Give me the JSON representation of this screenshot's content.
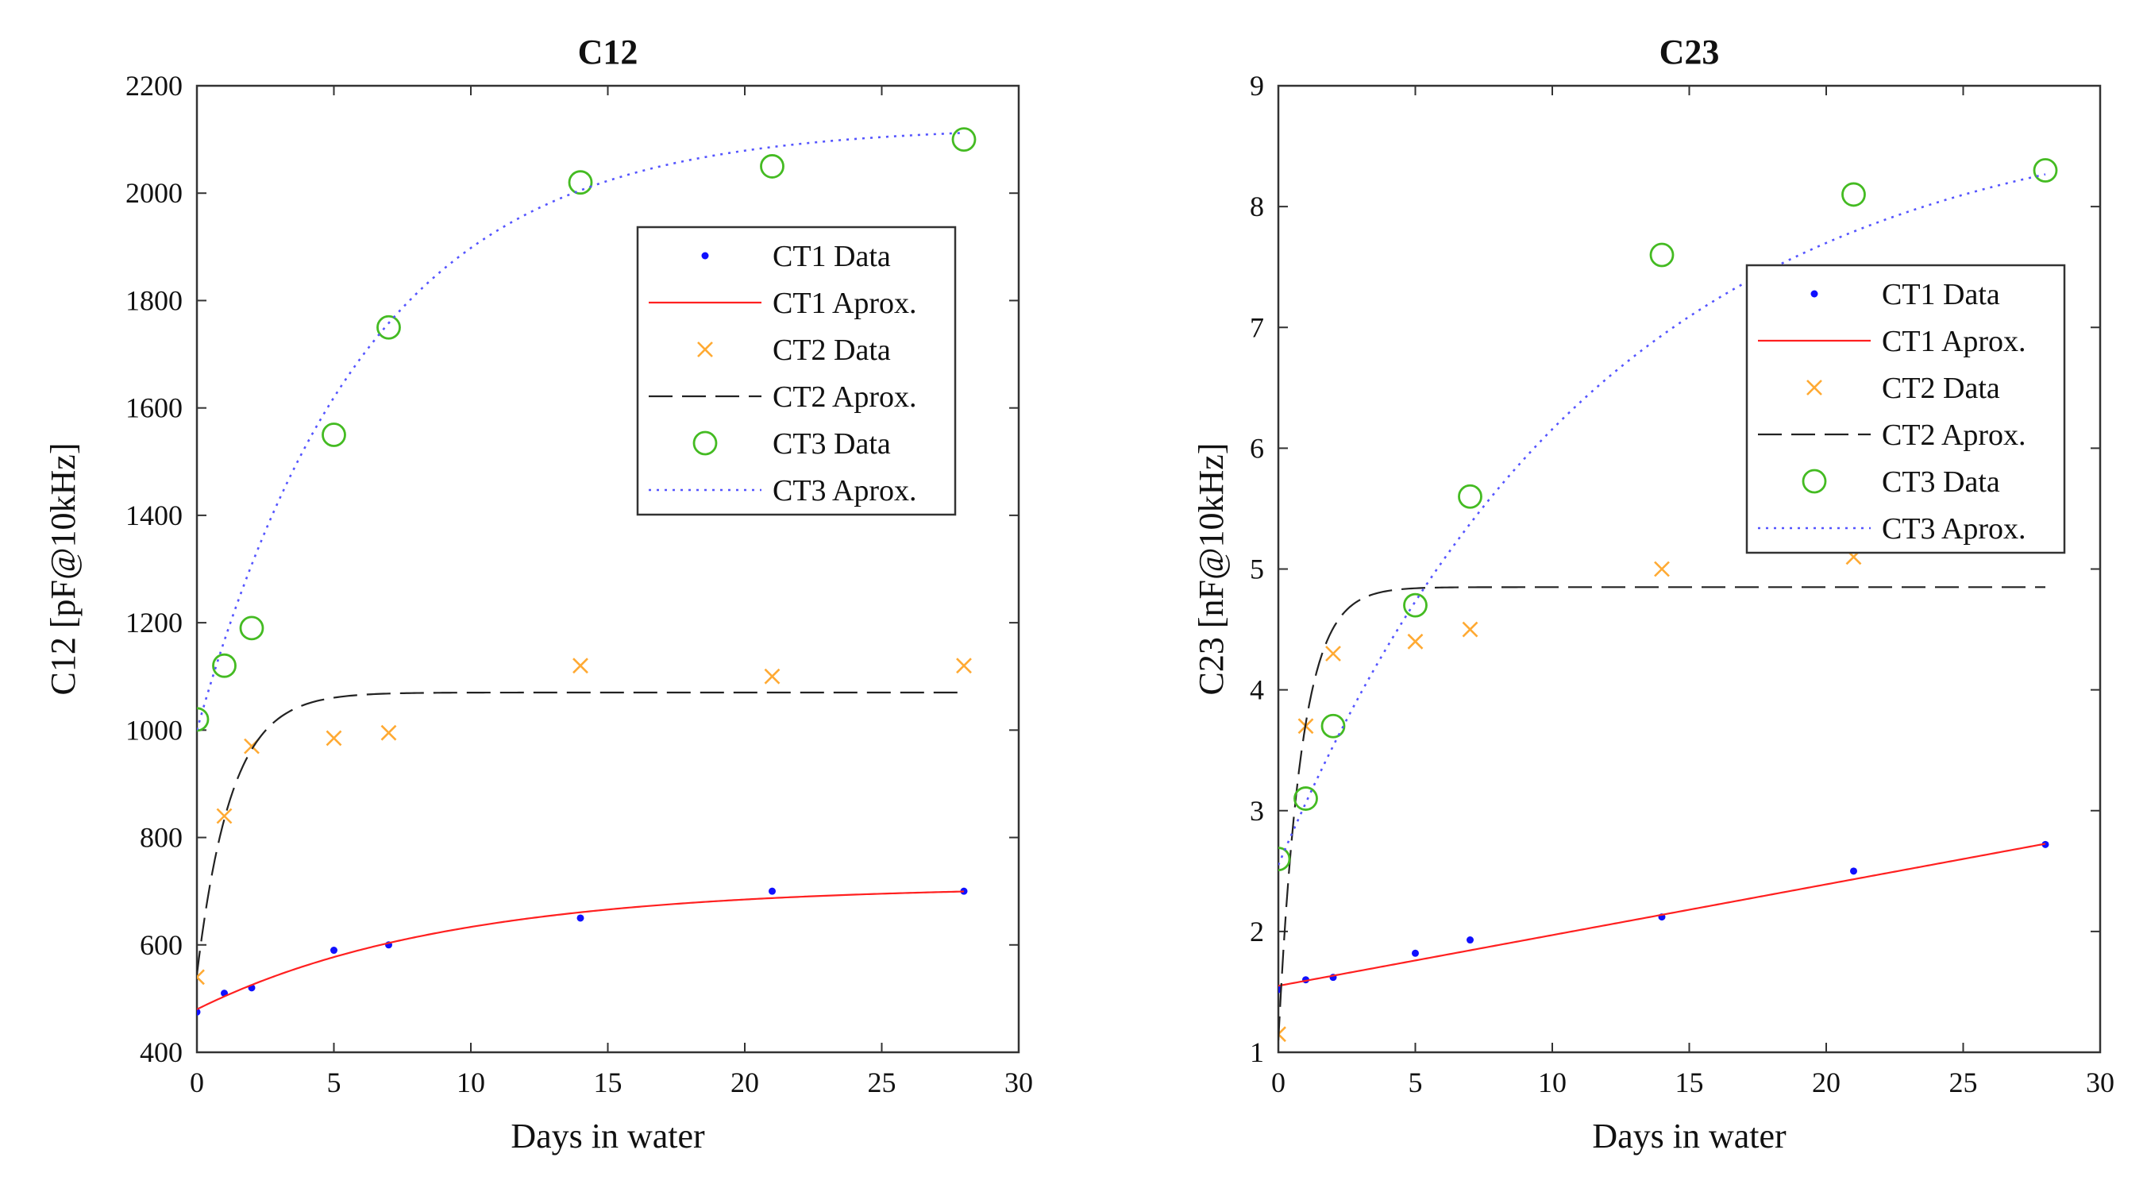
{
  "chart_data": [
    {
      "type": "line",
      "title": "C12",
      "xlabel": "Days in water",
      "ylabel": "C12 [pF@10kHz]",
      "xlim": [
        0,
        30
      ],
      "ylim": [
        400,
        2200
      ],
      "xticks": [
        0,
        5,
        10,
        15,
        20,
        25,
        30
      ],
      "yticks": [
        400,
        600,
        800,
        1000,
        1200,
        1400,
        1600,
        1800,
        2000,
        2200
      ],
      "grid": false,
      "legend_position": "upper-right",
      "x": [
        0,
        1,
        2,
        5,
        7,
        14,
        21,
        28
      ],
      "series": [
        {
          "name": "CT1 Data",
          "kind": "scatter",
          "marker": "dot",
          "color": "#1010ff",
          "values": [
            475,
            510,
            520,
            590,
            600,
            650,
            700,
            700
          ]
        },
        {
          "name": "CT1 Aprox.",
          "kind": "line",
          "style": "solid",
          "color": "#ff2020",
          "model": {
            "a": 480,
            "b": 230,
            "k": 0.11
          }
        },
        {
          "name": "CT2 Data",
          "kind": "scatter",
          "marker": "x",
          "color": "#ffaa33",
          "values": [
            540,
            840,
            970,
            985,
            995,
            1120,
            1100,
            1120
          ]
        },
        {
          "name": "CT2 Aprox.",
          "kind": "line",
          "style": "dashed",
          "color": "#222222",
          "model": {
            "a": 545,
            "b": 525,
            "k": 0.8
          }
        },
        {
          "name": "CT3 Data",
          "kind": "scatter",
          "marker": "circle",
          "color": "#44bb22",
          "values": [
            1020,
            1120,
            1190,
            1550,
            1750,
            2020,
            2050,
            2100
          ]
        },
        {
          "name": "CT3 Aprox.",
          "kind": "line",
          "style": "dotted",
          "color": "#5555ff",
          "model": {
            "a": 1000,
            "b": 1125,
            "k": 0.16
          }
        }
      ]
    },
    {
      "type": "line",
      "title": "C23",
      "xlabel": "Days in water",
      "ylabel": "C23 [nF@10kHz]",
      "xlim": [
        0,
        30
      ],
      "ylim": [
        1,
        9
      ],
      "xticks": [
        0,
        5,
        10,
        15,
        20,
        25,
        30
      ],
      "yticks": [
        1,
        2,
        3,
        4,
        5,
        6,
        7,
        8,
        9
      ],
      "grid": false,
      "legend_position": "upper-right",
      "x": [
        0,
        1,
        2,
        5,
        7,
        14,
        21,
        28
      ],
      "series": [
        {
          "name": "CT1 Data",
          "kind": "scatter",
          "marker": "dot",
          "color": "#1010ff",
          "values": [
            1.52,
            1.6,
            1.62,
            1.82,
            1.93,
            2.12,
            2.5,
            2.72
          ]
        },
        {
          "name": "CT1 Aprox.",
          "kind": "line",
          "style": "solid",
          "color": "#ff2020",
          "model": {
            "a": 1.55,
            "slope": 0.042
          }
        },
        {
          "name": "CT2 Data",
          "kind": "scatter",
          "marker": "x",
          "color": "#ffaa33",
          "values": [
            1.15,
            3.7,
            4.3,
            4.4,
            4.5,
            5.0,
            5.1,
            null
          ]
        },
        {
          "name": "CT2 Aprox.",
          "kind": "line",
          "style": "dashed",
          "color": "#222222",
          "model": {
            "a": 1.1,
            "b": 3.75,
            "k": 1.2
          }
        },
        {
          "name": "CT3 Data",
          "kind": "scatter",
          "marker": "circle",
          "color": "#44bb22",
          "values": [
            2.6,
            3.1,
            3.7,
            4.7,
            5.6,
            7.6,
            8.1,
            8.3
          ]
        },
        {
          "name": "CT3 Aprox.",
          "kind": "line",
          "style": "dotted",
          "color": "#5555ff",
          "model": {
            "a": 2.55,
            "b": 6.3,
            "k": 0.085
          }
        }
      ]
    }
  ]
}
